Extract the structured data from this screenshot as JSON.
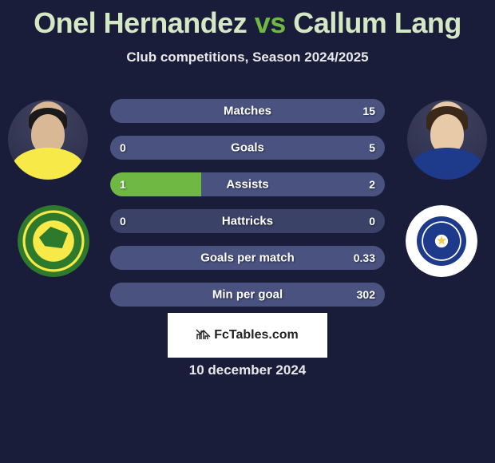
{
  "title": {
    "player1": "Onel Hernandez",
    "vs": "vs",
    "player2": "Callum Lang",
    "player1_color": "#d4e8c4",
    "vs_color": "#6eb843",
    "player2_color": "#d4e8c4",
    "fontsize": 36
  },
  "subtitle": "Club competitions, Season 2024/2025",
  "subtitle_color": "#e8e8e8",
  "background_color": "#1a1d3a",
  "stats": {
    "bar_bg": "#3a4268",
    "left_fill_color": "#6eb843",
    "right_fill_color": "#4a5280",
    "text_color": "#ffffff",
    "label_fontsize": 15,
    "value_fontsize": 14,
    "rows": [
      {
        "label": "Matches",
        "left": "",
        "right": "15",
        "left_pct": 0,
        "right_pct": 100
      },
      {
        "label": "Goals",
        "left": "0",
        "right": "5",
        "left_pct": 0,
        "right_pct": 100
      },
      {
        "label": "Assists",
        "left": "1",
        "right": "2",
        "left_pct": 33,
        "right_pct": 67
      },
      {
        "label": "Hattricks",
        "left": "0",
        "right": "0",
        "left_pct": 0,
        "right_pct": 0
      },
      {
        "label": "Goals per match",
        "left": "",
        "right": "0.33",
        "left_pct": 0,
        "right_pct": 100
      },
      {
        "label": "Min per goal",
        "left": "",
        "right": "302",
        "left_pct": 0,
        "right_pct": 100
      }
    ]
  },
  "crests": {
    "left": {
      "primary": "#f7e948",
      "secondary": "#2d7a2d"
    },
    "right": {
      "primary": "#1e3a8a",
      "secondary": "#ffffff",
      "accent": "#f7c948"
    }
  },
  "branding": {
    "text": "FcTables.com",
    "bg": "#ffffff",
    "color": "#222222"
  },
  "date": "10 december 2024"
}
